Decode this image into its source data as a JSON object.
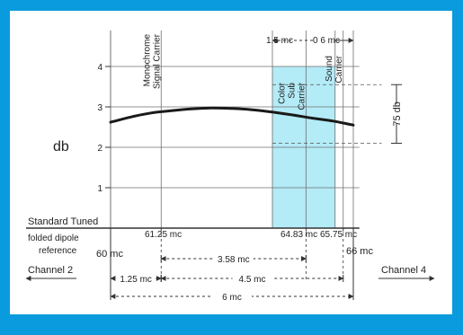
{
  "chart_data": {
    "type": "line",
    "ylabel": "db",
    "y_ticks": [
      "1",
      "2",
      "3",
      "4"
    ],
    "ylim": [
      0,
      4.5
    ],
    "xlim": [
      60,
      66.5
    ],
    "grid": true,
    "curve": {
      "x": [
        60.0,
        60.5,
        61.0,
        61.25,
        62.0,
        62.5,
        63.0,
        63.5,
        64.0,
        64.5,
        65.0,
        65.5,
        65.75,
        66.0
      ],
      "y": [
        2.62,
        2.75,
        2.85,
        2.88,
        2.95,
        2.97,
        2.96,
        2.93,
        2.87,
        2.8,
        2.72,
        2.65,
        2.6,
        2.55
      ]
    },
    "carriers": [
      {
        "x": 61.25,
        "label": "Monochrome Signal Carrier"
      },
      {
        "x": 64.83,
        "label": "Color Sub Carrier"
      },
      {
        "x": 65.75,
        "label": "Sound Carrier"
      }
    ],
    "color_band": {
      "x": [
        64.0,
        65.55
      ]
    },
    "dashed_levels": [
      3.55,
      2.1
    ],
    "ratio_label": "75 db",
    "baseline_label": "Standard Tuned",
    "reference_label": "folded dipole\nreference",
    "freq_labels": {
      "f0": "60 mc",
      "f1": "61.25 mc",
      "f2": "64.83 mc",
      "f3": "65.75 mc",
      "f4": "66 mc"
    },
    "top_spans": {
      "a": "1.5 mc",
      "b": "0 6 mc"
    },
    "spans": {
      "s1": "1.25 mc",
      "s2": "3.58 mc",
      "s3": "4.5 mc",
      "s4": "6 mc"
    },
    "channel_left": "Channel 2",
    "channel_right": "Channel 4",
    "colors": {
      "band": "#b3ebf7",
      "curve": "#1a1a1a",
      "grid": "#6f6f6f",
      "border": "#0a9bde"
    }
  }
}
